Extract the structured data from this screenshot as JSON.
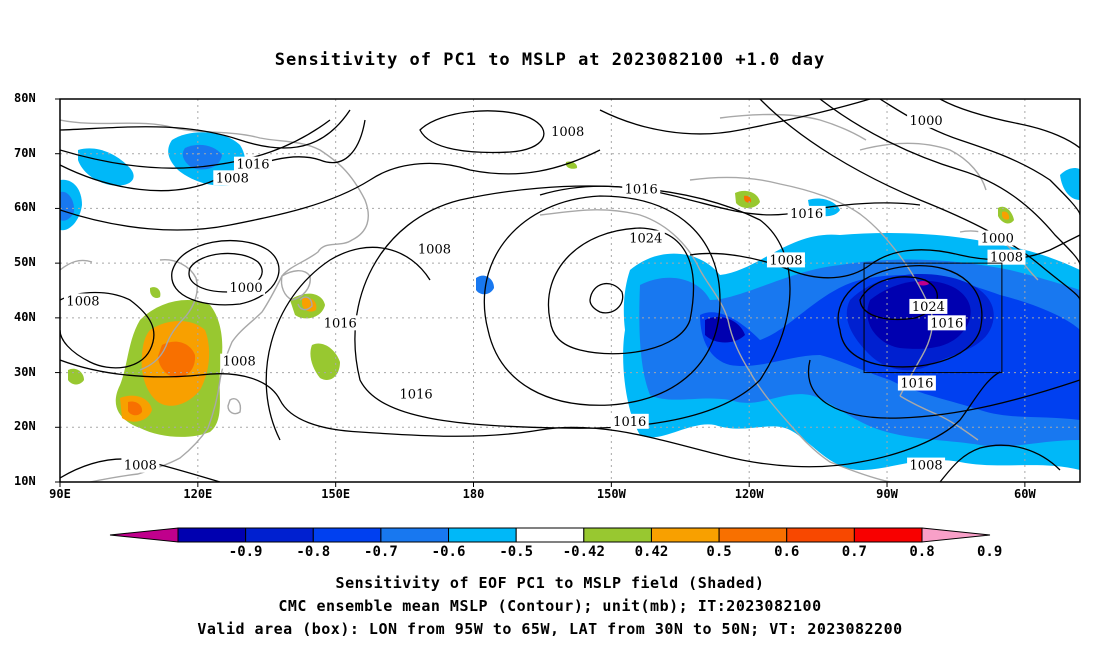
{
  "title": "Sensitivity of PC1 to MSLP at 2023082100 +1.0 day",
  "axes": {
    "lat_labels": [
      "80N",
      "70N",
      "60N",
      "50N",
      "40N",
      "30N",
      "20N",
      "10N"
    ],
    "lon_labels": [
      "90E",
      "120E",
      "150E",
      "180",
      "150W",
      "120W",
      "90W",
      "60W"
    ]
  },
  "map_data": {
    "projection": "cylindrical equidistant",
    "lon_range": [
      90,
      312
    ],
    "lat_range": [
      10,
      80
    ],
    "valid_box": {
      "lon": [
        265,
        295
      ],
      "lat": [
        30,
        50
      ]
    },
    "contour_unit": "mb",
    "contour_labels": [
      {
        "text": "1008",
        "lon": 200.5,
        "lat": 74.0
      },
      {
        "text": "1016",
        "lon": 132.0,
        "lat": 68.0
      },
      {
        "text": "1008",
        "lon": 127.5,
        "lat": 65.5
      },
      {
        "text": "1016",
        "lon": 216.5,
        "lat": 63.5
      },
      {
        "text": "1016",
        "lon": 252.5,
        "lat": 59.0
      },
      {
        "text": "1000",
        "lon": 278.5,
        "lat": 76.0
      },
      {
        "text": "1024",
        "lon": 217.5,
        "lat": 54.5
      },
      {
        "text": "1008",
        "lon": 171.5,
        "lat": 52.5
      },
      {
        "text": "1008",
        "lon": 248.0,
        "lat": 50.5
      },
      {
        "text": "1000",
        "lon": 294.0,
        "lat": 54.5
      },
      {
        "text": "1008",
        "lon": 296.0,
        "lat": 51.0
      },
      {
        "text": "1024",
        "lon": 279.0,
        "lat": 42.0
      },
      {
        "text": "1016",
        "lon": 283.0,
        "lat": 39.0
      },
      {
        "text": "1000",
        "lon": 130.5,
        "lat": 45.5
      },
      {
        "text": "1008",
        "lon": 95.0,
        "lat": 43.0
      },
      {
        "text": "1016",
        "lon": 151.0,
        "lat": 39.0
      },
      {
        "text": "1008",
        "lon": 129.0,
        "lat": 32.0
      },
      {
        "text": "1016",
        "lon": 167.5,
        "lat": 26.0
      },
      {
        "text": "1016",
        "lon": 214.0,
        "lat": 21.0
      },
      {
        "text": "1016",
        "lon": 276.5,
        "lat": 28.0
      },
      {
        "text": "1008",
        "lon": 107.5,
        "lat": 13.0
      },
      {
        "text": "1008",
        "lon": 278.5,
        "lat": 13.0
      }
    ]
  },
  "colorbar": {
    "colors": [
      "#c0008c",
      "#0000b0",
      "#0020d0",
      "#0040f0",
      "#1878f0",
      "#00b8f8",
      "#ffffff",
      "#98c830",
      "#f8a000",
      "#f87000",
      "#f84800",
      "#f80000",
      "#f8a0c8"
    ],
    "labels": [
      "-0.9",
      "-0.8",
      "-0.7",
      "-0.6",
      "-0.5",
      "-0.42",
      "0.42",
      "0.5",
      "0.6",
      "0.7",
      "0.8",
      "0.9"
    ]
  },
  "captions": {
    "line1": "Sensitivity of EOF PC1 to MSLP field (Shaded)",
    "line2": "CMC ensemble mean MSLP (Contour); unit(mb); IT:2023082100",
    "line3": "Valid area (box): LON from 95W to 65W, LAT from 30N to 50N; VT: 2023082200"
  }
}
